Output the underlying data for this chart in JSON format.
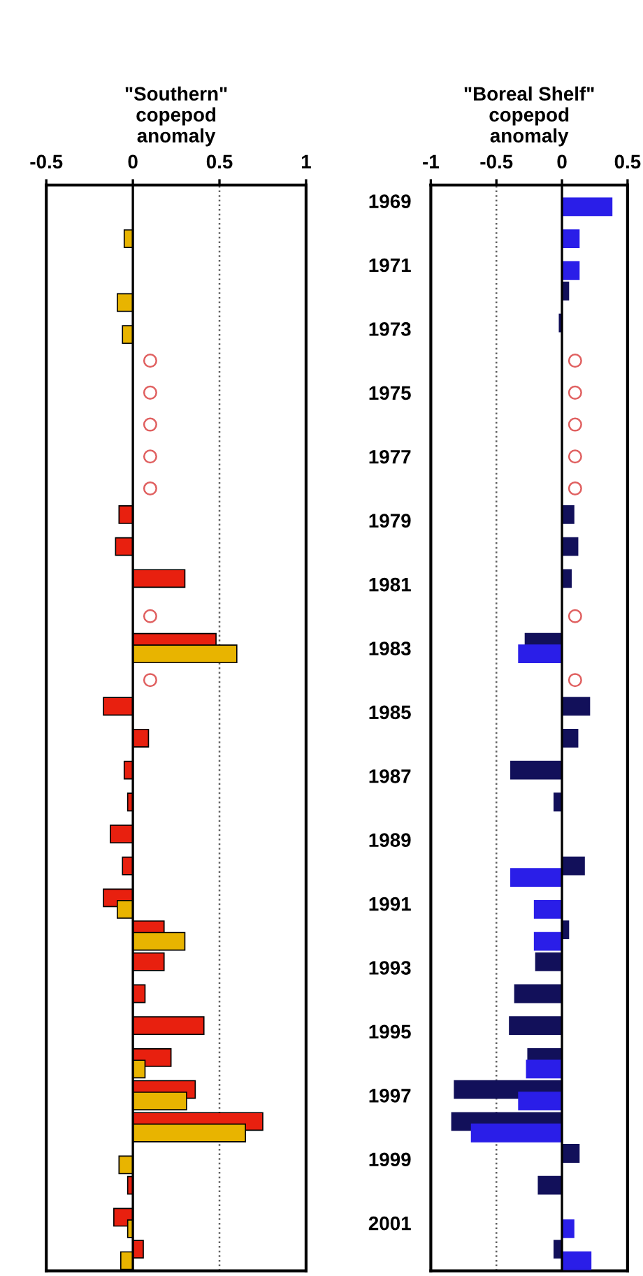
{
  "chart_data": [
    {
      "type": "bar",
      "orientation": "horizontal",
      "title": "\"Southern\"\ncopepod\nanomaly",
      "categories": [
        "1969",
        null,
        "1971",
        null,
        "1973",
        null,
        "1975",
        null,
        "1977",
        null,
        "1979",
        null,
        "1981",
        null,
        "1983",
        null,
        "1985",
        null,
        "1987",
        null,
        "1989",
        null,
        "1991",
        null,
        "1993",
        null,
        "1995",
        null,
        "1997",
        null,
        "1999",
        null,
        "2001",
        null
      ],
      "series": [
        {
          "color": "#e8200f",
          "values": [
            null,
            null,
            null,
            null,
            null,
            null,
            null,
            null,
            null,
            null,
            -0.08,
            -0.1,
            0.3,
            null,
            0.48,
            null,
            -0.17,
            0.09,
            -0.05,
            -0.03,
            -0.13,
            -0.06,
            -0.17,
            0.18,
            0.18,
            0.07,
            0.41,
            0.22,
            0.36,
            0.75,
            null,
            -0.03,
            -0.11,
            0.06
          ]
        },
        {
          "color": "#e8b400",
          "values": [
            null,
            -0.05,
            null,
            -0.09,
            -0.06,
            null,
            null,
            null,
            null,
            null,
            null,
            null,
            null,
            null,
            0.6,
            null,
            null,
            null,
            null,
            null,
            null,
            null,
            -0.09,
            0.3,
            null,
            null,
            null,
            0.07,
            0.31,
            0.65,
            -0.08,
            null,
            -0.03,
            -0.07
          ]
        },
        {
          "type": "scatter",
          "marker": "circle",
          "color": "#e06060",
          "values": [
            null,
            null,
            null,
            null,
            null,
            0.1,
            0.1,
            0.1,
            0.1,
            0.1,
            null,
            null,
            null,
            0.1,
            null,
            0.1,
            null,
            null,
            null,
            null,
            null,
            null,
            null,
            null,
            null,
            null,
            null,
            null,
            null,
            null,
            null,
            null,
            null,
            null
          ]
        }
      ],
      "xlim": [
        -0.5,
        1
      ],
      "xticks": [
        -0.5,
        0,
        0.5,
        1
      ],
      "tick_labels": "x",
      "ref_lines": [
        {
          "axis": "x",
          "value": 0.5,
          "color": "#606060",
          "line_style": "dotted"
        }
      ]
    },
    {
      "type": "bar",
      "orientation": "horizontal",
      "title": "\"Boreal Shelf\"\ncopepod\nanomaly",
      "categories": [
        "1969",
        null,
        "1971",
        null,
        "1973",
        null,
        "1975",
        null,
        "1977",
        null,
        "1979",
        null,
        "1981",
        null,
        "1983",
        null,
        "1985",
        null,
        "1987",
        null,
        "1989",
        null,
        "1991",
        null,
        "1993",
        null,
        "1995",
        null,
        "1997",
        null,
        "1999",
        null,
        "2001",
        null
      ],
      "series": [
        {
          "color": "#12105a",
          "values": [
            null,
            null,
            null,
            0.05,
            -0.02,
            null,
            null,
            null,
            null,
            null,
            0.09,
            0.12,
            0.07,
            null,
            -0.28,
            null,
            0.21,
            0.12,
            -0.39,
            -0.06,
            null,
            0.17,
            null,
            0.05,
            -0.2,
            -0.36,
            -0.4,
            -0.26,
            -0.82,
            -0.84,
            0.13,
            -0.18,
            null,
            -0.06
          ]
        },
        {
          "color": "#2a1ee8",
          "values": [
            0.38,
            0.13,
            0.13,
            null,
            null,
            null,
            null,
            null,
            null,
            null,
            null,
            null,
            null,
            null,
            -0.33,
            null,
            null,
            null,
            null,
            null,
            null,
            -0.39,
            -0.21,
            -0.21,
            null,
            null,
            null,
            -0.27,
            -0.33,
            -0.69,
            null,
            null,
            0.09,
            0.22
          ]
        },
        {
          "type": "scatter",
          "marker": "circle",
          "color": "#e06060",
          "values": [
            null,
            null,
            null,
            null,
            null,
            0.1,
            0.1,
            0.1,
            0.1,
            0.1,
            null,
            null,
            null,
            0.1,
            null,
            0.1,
            null,
            null,
            null,
            null,
            null,
            null,
            null,
            null,
            null,
            null,
            null,
            null,
            null,
            null,
            null,
            null,
            null,
            null
          ]
        }
      ],
      "xlim": [
        -1,
        0.5
      ],
      "xticks": [
        -1,
        -0.5,
        0,
        0.5
      ],
      "ref_lines": [
        {
          "axis": "x",
          "value": -0.5,
          "color": "#606060",
          "line_style": "dotted"
        }
      ]
    }
  ]
}
